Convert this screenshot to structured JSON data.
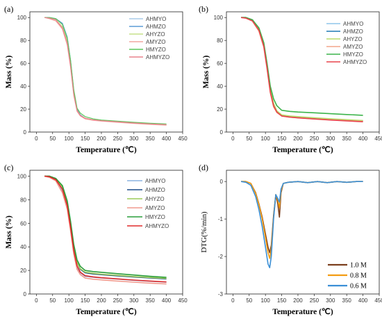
{
  "chart_data": [
    {
      "id": "a",
      "panel_label": "(a)",
      "type": "line",
      "xlabel": "Temperature (℃)",
      "ylabel": "Mass (%)",
      "xlim": [
        -20,
        450
      ],
      "ylim": [
        0,
        105
      ],
      "xticks": [
        0,
        50,
        100,
        150,
        200,
        250,
        300,
        350,
        400,
        450
      ],
      "yticks": [
        0,
        20,
        40,
        60,
        80,
        100
      ],
      "legend_position": "top-right",
      "series": [
        {
          "name": "AHMYO",
          "color": "#a9cbe8",
          "x": [
            25,
            40,
            60,
            80,
            95,
            105,
            115,
            125,
            135,
            150,
            175,
            200,
            250,
            300,
            350,
            400
          ],
          "y": [
            100,
            100,
            99,
            94,
            82,
            62,
            35,
            19,
            15,
            12,
            10.5,
            9.8,
            8.8,
            7.8,
            7,
            6.3
          ]
        },
        {
          "name": "AHMZO",
          "color": "#5b9bd5",
          "x": [
            25,
            40,
            60,
            80,
            95,
            105,
            115,
            125,
            135,
            150,
            175,
            200,
            250,
            300,
            350,
            400
          ],
          "y": [
            100,
            100,
            99,
            95,
            83,
            63,
            36,
            20,
            15,
            12,
            10.5,
            9.8,
            8.8,
            7.8,
            7,
            6.2
          ]
        },
        {
          "name": "AHYZO",
          "color": "#c5e08a",
          "x": [
            25,
            40,
            60,
            80,
            95,
            105,
            115,
            125,
            135,
            150,
            175,
            200,
            250,
            300,
            350,
            400
          ],
          "y": [
            100,
            99.5,
            98,
            92,
            80,
            60,
            34,
            19,
            14.5,
            12,
            10.5,
            9.8,
            8.8,
            7.8,
            7,
            6.4
          ]
        },
        {
          "name": "AMYZO",
          "color": "#f2a5a0",
          "x": [
            25,
            40,
            60,
            80,
            95,
            105,
            115,
            125,
            135,
            150,
            175,
            200,
            250,
            300,
            350,
            400
          ],
          "y": [
            100,
            99,
            97,
            90,
            76,
            57,
            32,
            18,
            14,
            11.5,
            10.2,
            9.5,
            8.5,
            7.5,
            6.7,
            6
          ]
        },
        {
          "name": "HMYZO",
          "color": "#5cc65c",
          "x": [
            25,
            40,
            60,
            80,
            95,
            105,
            115,
            125,
            135,
            150,
            175,
            200,
            250,
            300,
            350,
            400
          ],
          "y": [
            100,
            100,
            99,
            94,
            82,
            63,
            37,
            21,
            16.5,
            13.5,
            11.5,
            10.5,
            9.5,
            8.5,
            7.7,
            7.1
          ]
        },
        {
          "name": "AHMYZO",
          "color": "#e8828c",
          "x": [
            25,
            40,
            60,
            80,
            95,
            105,
            115,
            125,
            135,
            150,
            175,
            200,
            250,
            300,
            350,
            400
          ],
          "y": [
            100,
            99.5,
            98,
            91,
            78,
            58,
            33,
            19,
            14.5,
            12,
            10.6,
            9.9,
            8.9,
            7.9,
            7.1,
            6.5
          ]
        }
      ]
    },
    {
      "id": "b",
      "panel_label": "(b)",
      "type": "line",
      "xlabel": "Temperature (℃)",
      "ylabel": "Mass (%)",
      "xlim": [
        -20,
        450
      ],
      "ylim": [
        0,
        105
      ],
      "xticks": [
        0,
        50,
        100,
        150,
        200,
        250,
        300,
        350,
        400,
        450
      ],
      "yticks": [
        0,
        20,
        40,
        60,
        80,
        100
      ],
      "legend_position": "top-right",
      "series": [
        {
          "name": "AHMYO",
          "color": "#8ec5ea",
          "x": [
            25,
            40,
            60,
            80,
            95,
            105,
            115,
            125,
            135,
            150,
            175,
            200,
            250,
            300,
            350,
            400
          ],
          "y": [
            100,
            100,
            98,
            90,
            76,
            57,
            36,
            24,
            18,
            14.5,
            13.5,
            13,
            12,
            11.2,
            10.5,
            9.8
          ]
        },
        {
          "name": "AHMZO",
          "color": "#1f78b4",
          "x": [
            25,
            40,
            60,
            80,
            95,
            105,
            115,
            125,
            135,
            150,
            175,
            200,
            250,
            300,
            350,
            400
          ],
          "y": [
            100,
            100,
            98,
            90,
            76,
            57,
            36,
            24,
            18,
            14.5,
            13.5,
            13,
            12,
            11.2,
            10.5,
            9.8
          ]
        },
        {
          "name": "AHYZO",
          "color": "#b8dc6a",
          "x": [
            25,
            40,
            60,
            80,
            95,
            105,
            115,
            125,
            135,
            150,
            175,
            200,
            250,
            300,
            350,
            400
          ],
          "y": [
            100,
            100,
            98,
            90,
            77,
            58,
            37,
            25,
            18.5,
            15,
            14,
            13.5,
            12.5,
            11.6,
            10.8,
            10.1
          ]
        },
        {
          "name": "AMYZO",
          "color": "#f4a58a",
          "x": [
            25,
            40,
            60,
            80,
            95,
            105,
            115,
            125,
            135,
            150,
            175,
            200,
            250,
            300,
            350,
            400
          ],
          "y": [
            100,
            99.5,
            97,
            88,
            74,
            55,
            34,
            22,
            17,
            14,
            13,
            12.5,
            11.5,
            10.7,
            10,
            9.3
          ]
        },
        {
          "name": "HMYZO",
          "color": "#3cb44b",
          "x": [
            25,
            40,
            60,
            80,
            95,
            105,
            115,
            125,
            135,
            150,
            175,
            200,
            250,
            300,
            350,
            400
          ],
          "y": [
            100,
            100,
            98,
            91,
            78,
            60,
            40,
            29,
            23,
            19,
            18,
            17.5,
            16.8,
            16,
            15.3,
            14.6
          ]
        },
        {
          "name": "AHMYZO",
          "color": "#e8434b",
          "x": [
            25,
            40,
            60,
            80,
            95,
            105,
            115,
            125,
            135,
            150,
            175,
            200,
            250,
            300,
            350,
            400
          ],
          "y": [
            100,
            99.5,
            97,
            89,
            75,
            56,
            35,
            23,
            17.5,
            14,
            13,
            12.4,
            11.4,
            10.5,
            9.8,
            9
          ]
        }
      ]
    },
    {
      "id": "c",
      "panel_label": "(c)",
      "type": "line",
      "xlabel": "Temperature (℃)",
      "ylabel": "Mass (%)",
      "xlim": [
        -20,
        450
      ],
      "ylim": [
        0,
        105
      ],
      "xticks": [
        0,
        50,
        100,
        150,
        200,
        250,
        300,
        350,
        400,
        450
      ],
      "yticks": [
        0,
        20,
        40,
        60,
        80,
        100
      ],
      "legend_position": "top-right",
      "series": [
        {
          "name": "AHMYO",
          "color": "#8ab4e0",
          "x": [
            25,
            40,
            60,
            80,
            95,
            105,
            115,
            125,
            135,
            150,
            175,
            200,
            250,
            300,
            350,
            400
          ],
          "y": [
            100,
            100,
            97,
            88,
            74,
            56,
            36,
            23,
            18,
            15,
            14.2,
            13.6,
            12.6,
            11.6,
            10.8,
            10
          ]
        },
        {
          "name": "AHMZO",
          "color": "#1f4e8c",
          "x": [
            25,
            40,
            60,
            80,
            95,
            105,
            115,
            125,
            135,
            150,
            175,
            200,
            250,
            300,
            350,
            400
          ],
          "y": [
            100,
            100,
            98,
            91,
            78,
            60,
            40,
            27,
            21,
            18,
            17,
            16.4,
            15.4,
            14.4,
            13.6,
            12.8
          ]
        },
        {
          "name": "AHYZO",
          "color": "#9ccc5a",
          "x": [
            25,
            40,
            60,
            80,
            95,
            105,
            115,
            125,
            135,
            150,
            175,
            200,
            250,
            300,
            350,
            400
          ],
          "y": [
            100,
            100,
            98,
            91,
            78,
            60,
            40,
            27,
            21.5,
            18.5,
            17.5,
            16.8,
            15.8,
            14.8,
            14,
            13.2
          ]
        },
        {
          "name": "AMYZO",
          "color": "#f19a8e",
          "x": [
            25,
            40,
            60,
            80,
            95,
            105,
            115,
            125,
            135,
            150,
            175,
            200,
            250,
            300,
            350,
            400
          ],
          "y": [
            100,
            99,
            96,
            86,
            72,
            54,
            34,
            21,
            16.5,
            13.5,
            12.5,
            12,
            11,
            10,
            9.2,
            8.5
          ]
        },
        {
          "name": "HMYZO",
          "color": "#2a9d3a",
          "x": [
            25,
            40,
            60,
            80,
            95,
            105,
            115,
            125,
            135,
            150,
            175,
            200,
            250,
            300,
            350,
            400
          ],
          "y": [
            100,
            100,
            98,
            92,
            79,
            62,
            42,
            29,
            23.5,
            20,
            19,
            18.4,
            17.2,
            16.1,
            15,
            14.1
          ]
        },
        {
          "name": "AHMYZO",
          "color": "#e02a2a",
          "x": [
            25,
            40,
            60,
            80,
            95,
            105,
            115,
            125,
            135,
            150,
            175,
            200,
            250,
            300,
            350,
            400
          ],
          "y": [
            100,
            99.5,
            97,
            89,
            75,
            57,
            37,
            24,
            18.5,
            15.5,
            14.5,
            13.8,
            12.8,
            11.8,
            11,
            10.2
          ]
        }
      ]
    },
    {
      "id": "d",
      "panel_label": "(d)",
      "type": "line",
      "xlabel": "Temperature (℃)",
      "ylabel": "DTG(%/min)",
      "xlim": [
        -20,
        450
      ],
      "ylim": [
        -3,
        0.3
      ],
      "xticks": [
        0,
        50,
        100,
        150,
        200,
        250,
        300,
        350,
        400,
        450
      ],
      "yticks": [
        -3,
        -2,
        -1,
        0
      ],
      "legend_position": "bottom-right",
      "series": [
        {
          "name": "1.0 M",
          "color": "#7b3f1d",
          "x": [
            25,
            40,
            55,
            70,
            80,
            90,
            100,
            108,
            113,
            118,
            125,
            132,
            138,
            143,
            148,
            155,
            170,
            200,
            230,
            260,
            290,
            320,
            350,
            380,
            400
          ],
          "y": [
            0,
            0,
            -0.05,
            -0.3,
            -0.6,
            -0.95,
            -1.4,
            -1.75,
            -1.9,
            -1.7,
            -0.9,
            -0.35,
            -0.6,
            -0.95,
            -0.3,
            -0.05,
            -0.02,
            0,
            -0.03,
            0,
            -0.03,
            0,
            -0.02,
            0,
            0
          ]
        },
        {
          "name": "0.8 M",
          "color": "#f39c12",
          "x": [
            25,
            40,
            55,
            70,
            80,
            90,
            100,
            108,
            113,
            118,
            125,
            132,
            138,
            143,
            148,
            155,
            170,
            200,
            230,
            260,
            290,
            320,
            350,
            380,
            400
          ],
          "y": [
            0,
            0,
            -0.05,
            -0.32,
            -0.62,
            -1.0,
            -1.5,
            -1.9,
            -2.05,
            -1.8,
            -0.95,
            -0.35,
            -0.5,
            -0.7,
            -0.25,
            -0.05,
            -0.02,
            0,
            -0.03,
            0,
            -0.03,
            0,
            -0.02,
            0,
            0
          ]
        },
        {
          "name": "0.6 M",
          "color": "#3a8fd6",
          "x": [
            25,
            40,
            55,
            70,
            80,
            90,
            100,
            108,
            113,
            118,
            125,
            132,
            138,
            143,
            148,
            155,
            170,
            200,
            230,
            260,
            290,
            320,
            350,
            380,
            400
          ],
          "y": [
            0,
            -0.02,
            -0.1,
            -0.4,
            -0.75,
            -1.2,
            -1.75,
            -2.2,
            -2.3,
            -2.0,
            -1.0,
            -0.35,
            -0.45,
            -0.55,
            -0.2,
            -0.05,
            -0.02,
            0,
            -0.03,
            0,
            -0.03,
            0,
            -0.02,
            0,
            0
          ]
        }
      ]
    }
  ]
}
